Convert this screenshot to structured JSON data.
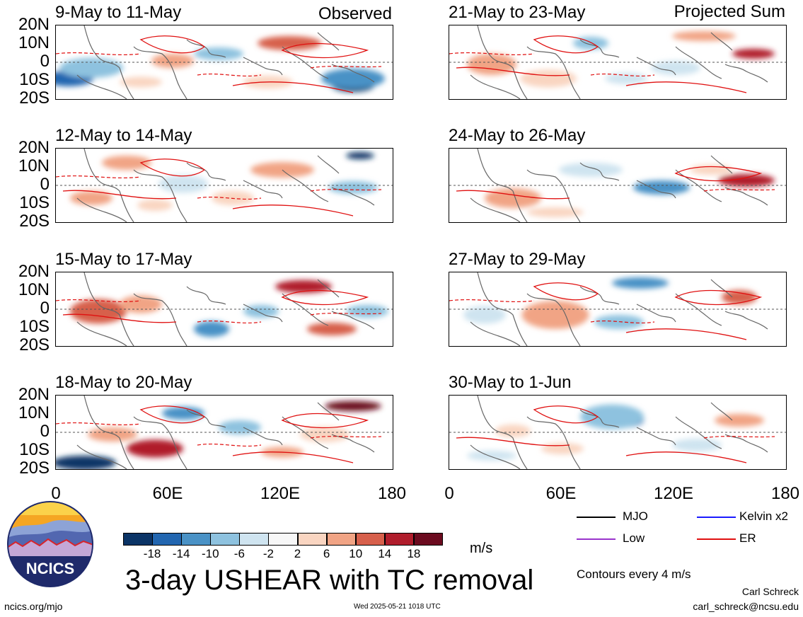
{
  "headings": {
    "left": "Observed",
    "right": "Projected Sum"
  },
  "panels_left": [
    {
      "title": "9-May to 11-May"
    },
    {
      "title": "12-May to 14-May"
    },
    {
      "title": "15-May to 17-May"
    },
    {
      "title": "18-May to 20-May"
    }
  ],
  "panels_right": [
    {
      "title": "21-May to 23-May"
    },
    {
      "title": "24-May to 26-May"
    },
    {
      "title": "27-May to 29-May"
    },
    {
      "title": "30-May to 1-Jun"
    }
  ],
  "lat_labels": [
    "20N",
    "10N",
    "0",
    "10S",
    "20S"
  ],
  "lon_labels": [
    "0",
    "60E",
    "120E",
    "180"
  ],
  "colorbar": {
    "labels": [
      "-18",
      "-14",
      "-10",
      "-6",
      "-2",
      "2",
      "6",
      "10",
      "14",
      "18"
    ],
    "colors": [
      "#0b3466",
      "#2266b0",
      "#4a92c6",
      "#8ec2df",
      "#cfe4f0",
      "#f7f7f7",
      "#f9d5c1",
      "#f1a485",
      "#d7604c",
      "#b01d2c",
      "#6b0b1f"
    ],
    "unit": "m/s"
  },
  "legend": {
    "items": [
      {
        "label": "MJO",
        "color": "#000000"
      },
      {
        "label": "Kelvin x2",
        "color": "#1a1aff"
      },
      {
        "label": "Low",
        "color": "#9933cc"
      },
      {
        "label": "ER",
        "color": "#e01010"
      }
    ],
    "note": "Contours every 4 m/s"
  },
  "main_title": "3-day USHEAR with TC removal",
  "logo_text": "NCICS",
  "footer": {
    "url": "ncics.org/mjo",
    "timestamp": "Wed 2025-05-21 1018 UTC",
    "author": "Carl Schreck",
    "email": "carl_schreck@ncsu.edu"
  }
}
